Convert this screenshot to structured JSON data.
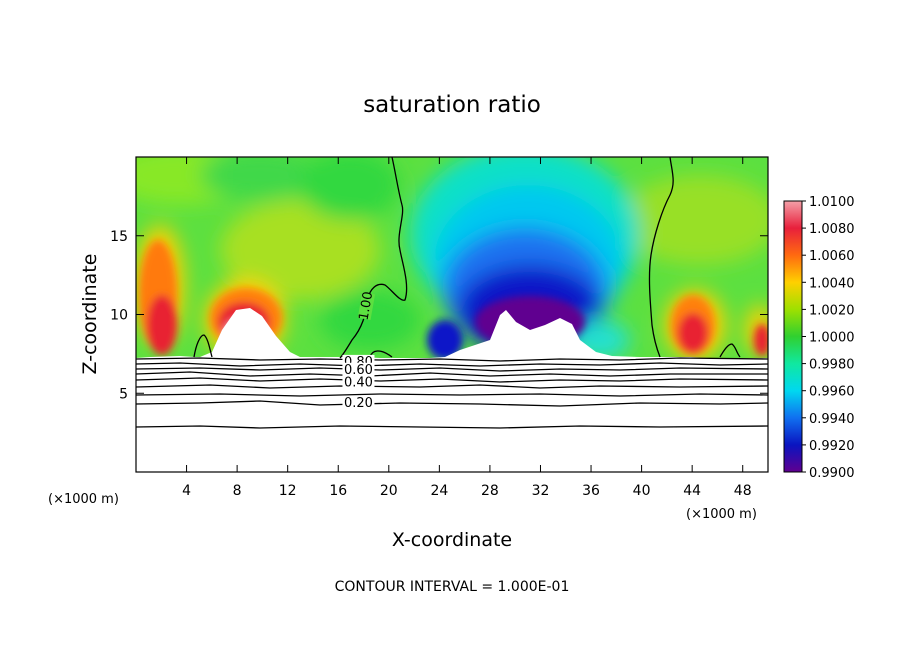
{
  "chart_data": {
    "type": "heatmap",
    "title": "saturation ratio",
    "xlabel": "X-coordinate",
    "ylabel": "Z-coordinate",
    "x_unit_left": "(×1000 m)",
    "x_unit_right": "(×1000 m)",
    "xlim": [
      0,
      50
    ],
    "ylim": [
      0,
      20
    ],
    "x_ticks": [
      4,
      8,
      12,
      16,
      20,
      24,
      28,
      32,
      36,
      40,
      44,
      48
    ],
    "y_ticks": [
      5,
      10,
      15
    ],
    "colorbar": {
      "range": [
        0.99,
        1.01
      ],
      "labels": [
        "1.0100",
        "1.0080",
        "1.0060",
        "1.0040",
        "1.0020",
        "1.0000",
        "0.9980",
        "0.9960",
        "0.9940",
        "0.9920",
        "0.9900"
      ],
      "colors": [
        "#f4a0a8",
        "#e8203c",
        "#ff6a10",
        "#ffd000",
        "#9ee000",
        "#30d030",
        "#10e8a0",
        "#00d8f0",
        "#1070f0",
        "#0a14c0",
        "#600090"
      ]
    },
    "contour_labels": [
      {
        "text": "1.00",
        "x": 18.5,
        "y": 10.5
      },
      {
        "text": "0.80",
        "x": 17.6,
        "y": 6.8
      },
      {
        "text": "0.60",
        "x": 17.6,
        "y": 6.3
      },
      {
        "text": "0.40",
        "x": 17.6,
        "y": 5.5
      },
      {
        "text": "0.20",
        "x": 17.6,
        "y": 4.2
      }
    ],
    "contour_interval_text": "CONTOUR INTERVAL = 1.000E-01"
  }
}
